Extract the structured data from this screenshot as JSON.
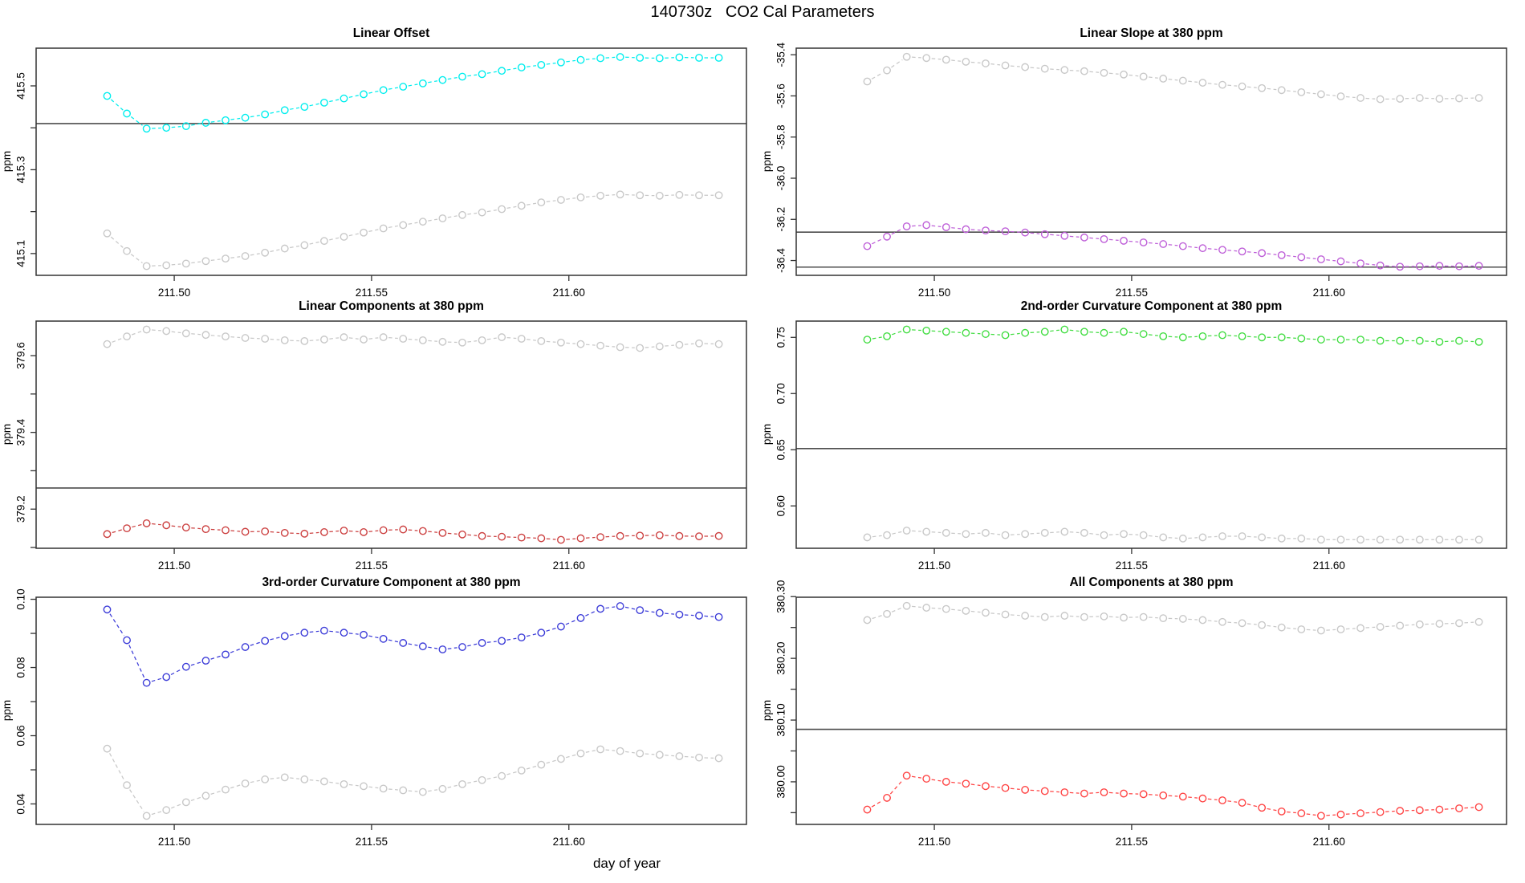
{
  "figure": {
    "title": "140730z   CO2 Cal Parameters",
    "xlabel": "day of year",
    "background": "#ffffff",
    "axis_color": "#333333",
    "ref_line_color": "#4d4d4d"
  },
  "chart_data": [
    {
      "type": "line",
      "title": "Linear Offset",
      "ylabel": "ppm",
      "xlim": [
        211.465,
        211.645
      ],
      "ylim": [
        415.048,
        415.59
      ],
      "x_ticks": [
        {
          "v": 211.5,
          "label": "211.50"
        },
        {
          "v": 211.55,
          "label": "211.55"
        },
        {
          "v": 211.6,
          "label": "211.60"
        }
      ],
      "y_ticks": [
        {
          "v": 415.1,
          "label": "415.1"
        },
        {
          "v": 415.2,
          "label": ""
        },
        {
          "v": 415.3,
          "label": "415.3"
        },
        {
          "v": 415.4,
          "label": ""
        },
        {
          "v": 415.5,
          "label": "415.5"
        }
      ],
      "ref_lines": [
        415.41
      ],
      "x": [
        211.483,
        211.488,
        211.493,
        211.498,
        211.503,
        211.508,
        211.513,
        211.518,
        211.523,
        211.528,
        211.533,
        211.538,
        211.543,
        211.548,
        211.553,
        211.558,
        211.563,
        211.568,
        211.573,
        211.578,
        211.583,
        211.588,
        211.593,
        211.598,
        211.603,
        211.608,
        211.613,
        211.618,
        211.623,
        211.628,
        211.633,
        211.638
      ],
      "series": [
        {
          "name": "series-1",
          "color": "#00EEEE",
          "values": [
            415.476,
            415.434,
            415.398,
            415.4,
            415.404,
            415.412,
            415.418,
            415.424,
            415.432,
            415.442,
            415.45,
            415.46,
            415.47,
            415.48,
            415.49,
            415.498,
            415.506,
            415.514,
            415.522,
            415.528,
            415.536,
            415.544,
            415.55,
            415.556,
            415.562,
            415.566,
            415.569,
            415.567,
            415.566,
            415.568,
            415.567,
            415.567
          ]
        },
        {
          "name": "series-2",
          "color": "#C8C8C8",
          "values": [
            415.148,
            415.106,
            415.07,
            415.072,
            415.076,
            415.082,
            415.088,
            415.094,
            415.102,
            415.112,
            415.12,
            415.13,
            415.14,
            415.15,
            415.16,
            415.168,
            415.176,
            415.184,
            415.192,
            415.198,
            415.206,
            415.214,
            415.222,
            415.228,
            415.234,
            415.238,
            415.241,
            415.239,
            415.238,
            415.24,
            415.239,
            415.239
          ]
        }
      ]
    },
    {
      "type": "line",
      "title": "Linear Slope at 380 ppm",
      "ylabel": "ppm",
      "xlim": [
        211.465,
        211.645
      ],
      "ylim": [
        -36.472,
        -35.368
      ],
      "x_ticks": [
        {
          "v": 211.5,
          "label": "211.50"
        },
        {
          "v": 211.55,
          "label": "211.55"
        },
        {
          "v": 211.6,
          "label": "211.60"
        }
      ],
      "y_ticks": [
        {
          "v": -36.4,
          "label": "-36.4"
        },
        {
          "v": -36.2,
          "label": "-36.2"
        },
        {
          "v": -36.0,
          "label": "-36.0"
        },
        {
          "v": -35.8,
          "label": "-35.8"
        },
        {
          "v": -35.6,
          "label": "-35.6"
        },
        {
          "v": -35.4,
          "label": "-35.4"
        }
      ],
      "ref_lines": [
        -36.262,
        -36.432
      ],
      "x": [
        211.483,
        211.488,
        211.493,
        211.498,
        211.503,
        211.508,
        211.513,
        211.518,
        211.523,
        211.528,
        211.533,
        211.538,
        211.543,
        211.548,
        211.553,
        211.558,
        211.563,
        211.568,
        211.573,
        211.578,
        211.583,
        211.588,
        211.593,
        211.598,
        211.603,
        211.608,
        211.613,
        211.618,
        211.623,
        211.628,
        211.633,
        211.638
      ],
      "series": [
        {
          "name": "series-1",
          "color": "#C8C8C8",
          "values": [
            -35.53,
            -35.476,
            -35.41,
            -35.416,
            -35.424,
            -35.434,
            -35.442,
            -35.452,
            -35.46,
            -35.468,
            -35.474,
            -35.48,
            -35.488,
            -35.496,
            -35.506,
            -35.516,
            -35.526,
            -35.536,
            -35.546,
            -35.554,
            -35.562,
            -35.572,
            -35.582,
            -35.592,
            -35.602,
            -35.61,
            -35.616,
            -35.614,
            -35.61,
            -35.614,
            -35.612,
            -35.61
          ]
        },
        {
          "name": "series-2",
          "color": "#BE5FD8",
          "values": [
            -36.33,
            -36.284,
            -36.234,
            -36.228,
            -36.238,
            -36.248,
            -36.254,
            -36.258,
            -36.264,
            -36.272,
            -36.28,
            -36.288,
            -36.296,
            -36.304,
            -36.312,
            -36.32,
            -36.33,
            -36.34,
            -36.348,
            -36.356,
            -36.364,
            -36.374,
            -36.384,
            -36.394,
            -36.404,
            -36.414,
            -36.424,
            -36.43,
            -36.428,
            -36.426,
            -36.428,
            -36.426
          ]
        }
      ]
    },
    {
      "type": "line",
      "title": "Linear Components at 380 ppm",
      "ylabel": "ppm",
      "xlim": [
        211.465,
        211.645
      ],
      "ylim": [
        379.098,
        379.69
      ],
      "x_ticks": [
        {
          "v": 211.5,
          "label": "211.50"
        },
        {
          "v": 211.55,
          "label": "211.55"
        },
        {
          "v": 211.6,
          "label": "211.60"
        }
      ],
      "y_ticks": [
        {
          "v": 379.1,
          "label": ""
        },
        {
          "v": 379.2,
          "label": "379.2"
        },
        {
          "v": 379.3,
          "label": ""
        },
        {
          "v": 379.4,
          "label": "379.4"
        },
        {
          "v": 379.5,
          "label": ""
        },
        {
          "v": 379.6,
          "label": "379.6"
        }
      ],
      "ref_lines": [
        379.255
      ],
      "x": [
        211.483,
        211.488,
        211.493,
        211.498,
        211.503,
        211.508,
        211.513,
        211.518,
        211.523,
        211.528,
        211.533,
        211.538,
        211.543,
        211.548,
        211.553,
        211.558,
        211.563,
        211.568,
        211.573,
        211.578,
        211.583,
        211.588,
        211.593,
        211.598,
        211.603,
        211.608,
        211.613,
        211.618,
        211.623,
        211.628,
        211.633,
        211.638
      ],
      "series": [
        {
          "name": "series-1",
          "color": "#C8C8C8",
          "values": [
            379.63,
            379.65,
            379.668,
            379.664,
            379.658,
            379.654,
            379.65,
            379.646,
            379.644,
            379.64,
            379.638,
            379.642,
            379.648,
            379.642,
            379.648,
            379.644,
            379.64,
            379.636,
            379.634,
            379.64,
            379.648,
            379.644,
            379.638,
            379.634,
            379.63,
            379.626,
            379.622,
            379.62,
            379.624,
            379.628,
            379.632,
            379.63
          ]
        },
        {
          "name": "series-2",
          "color": "#CC4040",
          "values": [
            379.135,
            379.15,
            379.163,
            379.158,
            379.152,
            379.148,
            379.145,
            379.141,
            379.142,
            379.138,
            379.136,
            379.14,
            379.144,
            379.14,
            379.145,
            379.147,
            379.143,
            379.138,
            379.134,
            379.13,
            379.128,
            379.126,
            379.124,
            379.12,
            379.124,
            379.127,
            379.13,
            379.131,
            379.132,
            379.13,
            379.129,
            379.13
          ]
        }
      ]
    },
    {
      "type": "line",
      "title": "2nd-order Curvature Component at 380 ppm",
      "ylabel": "ppm",
      "xlim": [
        211.465,
        211.645
      ],
      "ylim": [
        0.5623,
        0.7645
      ],
      "x_ticks": [
        {
          "v": 211.5,
          "label": "211.50"
        },
        {
          "v": 211.55,
          "label": "211.55"
        },
        {
          "v": 211.6,
          "label": "211.60"
        }
      ],
      "y_ticks": [
        {
          "v": 0.6,
          "label": "0.60"
        },
        {
          "v": 0.65,
          "label": "0.65"
        },
        {
          "v": 0.7,
          "label": "0.70"
        },
        {
          "v": 0.75,
          "label": "0.75"
        }
      ],
      "ref_lines": [
        0.651
      ],
      "x": [
        211.483,
        211.488,
        211.493,
        211.498,
        211.503,
        211.508,
        211.513,
        211.518,
        211.523,
        211.528,
        211.533,
        211.538,
        211.543,
        211.548,
        211.553,
        211.558,
        211.563,
        211.568,
        211.573,
        211.578,
        211.583,
        211.588,
        211.593,
        211.598,
        211.603,
        211.608,
        211.613,
        211.618,
        211.623,
        211.628,
        211.633,
        211.638
      ],
      "series": [
        {
          "name": "series-1",
          "color": "#42DD42",
          "values": [
            0.748,
            0.751,
            0.757,
            0.756,
            0.755,
            0.754,
            0.753,
            0.752,
            0.754,
            0.755,
            0.757,
            0.755,
            0.754,
            0.755,
            0.753,
            0.751,
            0.75,
            0.751,
            0.752,
            0.751,
            0.75,
            0.75,
            0.749,
            0.748,
            0.748,
            0.748,
            0.747,
            0.747,
            0.747,
            0.746,
            0.747,
            0.746
          ]
        },
        {
          "name": "series-2",
          "color": "#C8C8C8",
          "values": [
            0.572,
            0.574,
            0.578,
            0.577,
            0.576,
            0.575,
            0.576,
            0.574,
            0.575,
            0.576,
            0.577,
            0.576,
            0.574,
            0.575,
            0.574,
            0.572,
            0.571,
            0.572,
            0.573,
            0.573,
            0.572,
            0.571,
            0.571,
            0.57,
            0.57,
            0.57,
            0.57,
            0.57,
            0.57,
            0.57,
            0.57,
            0.57
          ]
        }
      ]
    },
    {
      "type": "line",
      "title": "3rd-order Curvature Component at 380 ppm",
      "ylabel": "ppm",
      "xlim": [
        211.465,
        211.645
      ],
      "ylim": [
        0.034,
        0.1006
      ],
      "x_ticks": [
        {
          "v": 211.5,
          "label": "211.50"
        },
        {
          "v": 211.55,
          "label": "211.55"
        },
        {
          "v": 211.6,
          "label": "211.60"
        }
      ],
      "y_ticks": [
        {
          "v": 0.04,
          "label": "0.04"
        },
        {
          "v": 0.05,
          "label": ""
        },
        {
          "v": 0.06,
          "label": "0.06"
        },
        {
          "v": 0.07,
          "label": ""
        },
        {
          "v": 0.08,
          "label": "0.08"
        },
        {
          "v": 0.09,
          "label": ""
        },
        {
          "v": 0.1,
          "label": "0.10"
        }
      ],
      "ref_lines": [],
      "x": [
        211.483,
        211.488,
        211.493,
        211.498,
        211.503,
        211.508,
        211.513,
        211.518,
        211.523,
        211.528,
        211.533,
        211.538,
        211.543,
        211.548,
        211.553,
        211.558,
        211.563,
        211.568,
        211.573,
        211.578,
        211.583,
        211.588,
        211.593,
        211.598,
        211.603,
        211.608,
        211.613,
        211.618,
        211.623,
        211.628,
        211.633,
        211.638
      ],
      "series": [
        {
          "name": "series-1",
          "color": "#3C3CD8",
          "values": [
            0.097,
            0.088,
            0.0755,
            0.0772,
            0.0802,
            0.082,
            0.0838,
            0.086,
            0.0878,
            0.0892,
            0.0902,
            0.0908,
            0.0902,
            0.0896,
            0.0884,
            0.0872,
            0.0862,
            0.0853,
            0.086,
            0.0872,
            0.0878,
            0.0888,
            0.0902,
            0.092,
            0.0945,
            0.0972,
            0.098,
            0.0968,
            0.096,
            0.0955,
            0.0952,
            0.0948
          ]
        },
        {
          "name": "series-2",
          "color": "#C8C8C8",
          "values": [
            0.0562,
            0.0455,
            0.0365,
            0.0382,
            0.0405,
            0.0424,
            0.0442,
            0.046,
            0.0472,
            0.0478,
            0.0472,
            0.0466,
            0.0458,
            0.0452,
            0.0445,
            0.044,
            0.0435,
            0.0444,
            0.0458,
            0.047,
            0.0482,
            0.0498,
            0.0515,
            0.0532,
            0.0548,
            0.056,
            0.0555,
            0.0548,
            0.0544,
            0.054,
            0.0536,
            0.0534
          ]
        }
      ]
    },
    {
      "type": "line",
      "title": "All Components at 380 ppm",
      "ylabel": "ppm",
      "xlim": [
        211.465,
        211.645
      ],
      "ylim": [
        379.931,
        380.299
      ],
      "x_ticks": [
        {
          "v": 211.5,
          "label": "211.50"
        },
        {
          "v": 211.55,
          "label": "211.55"
        },
        {
          "v": 211.6,
          "label": "211.60"
        }
      ],
      "y_ticks": [
        {
          "v": 379.95,
          "label": ""
        },
        {
          "v": 380.0,
          "label": "380.00"
        },
        {
          "v": 380.05,
          "label": ""
        },
        {
          "v": 380.1,
          "label": "380.10"
        },
        {
          "v": 380.15,
          "label": ""
        },
        {
          "v": 380.2,
          "label": "380.20"
        },
        {
          "v": 380.25,
          "label": ""
        },
        {
          "v": 380.3,
          "label": "380.30"
        }
      ],
      "ref_lines": [
        380.085
      ],
      "x": [
        211.483,
        211.488,
        211.493,
        211.498,
        211.503,
        211.508,
        211.513,
        211.518,
        211.523,
        211.528,
        211.533,
        211.538,
        211.543,
        211.548,
        211.553,
        211.558,
        211.563,
        211.568,
        211.573,
        211.578,
        211.583,
        211.588,
        211.593,
        211.598,
        211.603,
        211.608,
        211.613,
        211.618,
        211.623,
        211.628,
        211.633,
        211.638
      ],
      "series": [
        {
          "name": "series-1",
          "color": "#C8C8C8",
          "values": [
            380.262,
            380.272,
            380.285,
            380.282,
            380.28,
            380.277,
            380.274,
            380.271,
            380.269,
            380.267,
            380.269,
            380.267,
            380.268,
            380.266,
            380.267,
            380.265,
            380.264,
            380.262,
            380.259,
            380.257,
            380.254,
            380.25,
            380.247,
            380.245,
            380.247,
            380.249,
            380.251,
            380.253,
            380.255,
            380.256,
            380.257,
            380.259
          ]
        },
        {
          "name": "series-2",
          "color": "#FF4444",
          "values": [
            379.955,
            379.974,
            380.01,
            380.005,
            380.0,
            379.997,
            379.993,
            379.99,
            379.987,
            379.985,
            379.983,
            379.981,
            379.983,
            379.981,
            379.98,
            379.978,
            379.976,
            379.973,
            379.97,
            379.966,
            379.958,
            379.952,
            379.949,
            379.945,
            379.947,
            379.949,
            379.951,
            379.953,
            379.954,
            379.955,
            379.957,
            379.959
          ]
        }
      ]
    }
  ]
}
